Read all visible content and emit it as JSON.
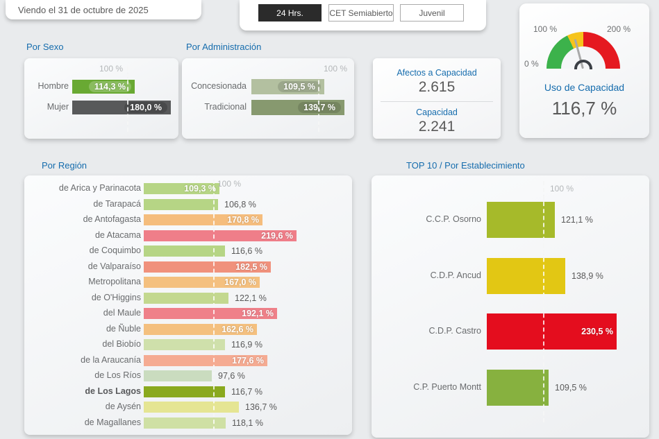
{
  "header": {
    "date_label": "Viendo el 31 de octubre de 2025",
    "filters": [
      {
        "label": "24 Hrs.",
        "active": true
      },
      {
        "label": "CET Semiabierto",
        "active": false
      },
      {
        "label": "Juvenil",
        "active": false
      }
    ]
  },
  "kpi": {
    "afectos_label": "Afectos a Capacidad",
    "afectos_value": "2.615",
    "capacidad_label": "Capacidad",
    "capacidad_value": "2.241"
  },
  "chart_data": [
    {
      "id": "por_sexo",
      "type": "bar",
      "title": "Por Sexo",
      "orientation": "horizontal",
      "unit": "%",
      "reference_line": {
        "value": 100,
        "label": "100 %"
      },
      "categories": [
        "Hombre",
        "Mujer"
      ],
      "values": [
        114.3,
        180.0
      ],
      "value_labels": [
        "114,3 %",
        "180,0 %"
      ],
      "bar_colors": [
        "#69a933",
        "#58595a"
      ],
      "label_inside": [
        true,
        true
      ]
    },
    {
      "id": "por_admin",
      "type": "bar",
      "title": "Por Administración",
      "orientation": "horizontal",
      "unit": "%",
      "reference_line": {
        "value": 100,
        "label": "100 %"
      },
      "categories": [
        "Concesionada",
        "Tradicional"
      ],
      "values": [
        109.5,
        139.7
      ],
      "value_labels": [
        "109,5 %",
        "139,7 %"
      ],
      "bar_colors": [
        "#b3c0a0",
        "#87996f"
      ],
      "label_inside": [
        true,
        true
      ]
    },
    {
      "id": "por_region",
      "type": "bar",
      "title": "Por Región",
      "orientation": "horizontal",
      "unit": "%",
      "reference_line": {
        "value": 100,
        "label": "100 %"
      },
      "categories": [
        "de Arica y Parinacota",
        "de Tarapacá",
        "de Antofagasta",
        "de Atacama",
        "de Coquimbo",
        "de Valparaíso",
        "Metropolitana",
        "de O'Higgins",
        "del Maule",
        "de Ñuble",
        "del Biobío",
        "de la Araucanía",
        "de Los Ríos",
        "de Los Lagos",
        "de Aysén",
        "de Magallanes"
      ],
      "values": [
        109.3,
        106.8,
        170.8,
        219.6,
        116.6,
        182.5,
        167.0,
        122.1,
        192.1,
        162.6,
        116.9,
        177.6,
        97.6,
        116.7,
        136.7,
        118.1
      ],
      "value_labels": [
        "109,3 %",
        "106,8 %",
        "170,8 %",
        "219,6 %",
        "116,6 %",
        "182,5 %",
        "167,0 %",
        "122,1 %",
        "192,1 %",
        "162,6 %",
        "116,9 %",
        "177,6 %",
        "97,6 %",
        "116,7 %",
        "136,7 %",
        "118,1 %"
      ],
      "bar_colors": [
        "#b6d585",
        "#b6d585",
        "#f5bd7d",
        "#ef7e89",
        "#b6d585",
        "#f0917c",
        "#f4c07f",
        "#c3d88f",
        "#ef8089",
        "#f4c07f",
        "#cfe0ab",
        "#f5ab92",
        "#cadcbf",
        "#8aa91e",
        "#e5e593",
        "#cfe0a4"
      ],
      "label_inside": [
        true,
        false,
        true,
        true,
        false,
        true,
        true,
        false,
        true,
        true,
        false,
        true,
        false,
        false,
        false,
        false
      ],
      "bold_index": 13
    },
    {
      "id": "top10",
      "type": "bar",
      "title": "TOP 10 / Por Establecimiento",
      "orientation": "horizontal",
      "unit": "%",
      "reference_line": {
        "value": 100,
        "label": "100 %"
      },
      "categories": [
        "C.C.P. Osorno",
        "C.D.P. Ancud",
        "C.D.P. Castro",
        "C.P. Puerto Montt"
      ],
      "values": [
        121.1,
        138.9,
        230.5,
        109.5
      ],
      "value_labels": [
        "121,1 %",
        "138,9 %",
        "230,5 %",
        "109,5 %"
      ],
      "bar_colors": [
        "#a6ba2a",
        "#e2c714",
        "#e40d1e",
        "#87b13f"
      ],
      "label_inside": [
        false,
        false,
        true,
        false
      ]
    },
    {
      "id": "uso_capacidad",
      "type": "gauge",
      "title": "Uso de Capacidad",
      "value": 116.7,
      "value_label": "116,7 %",
      "min": 0,
      "max": 280,
      "tick_labels": [
        "0 %",
        "100 %",
        "200 %"
      ],
      "zones": [
        {
          "from": 0,
          "to": 100,
          "color": "#3cb24b"
        },
        {
          "from": 100,
          "to": 140,
          "color": "#f6c41c"
        },
        {
          "from": 140,
          "to": 280,
          "color": "#e51920"
        }
      ]
    }
  ]
}
